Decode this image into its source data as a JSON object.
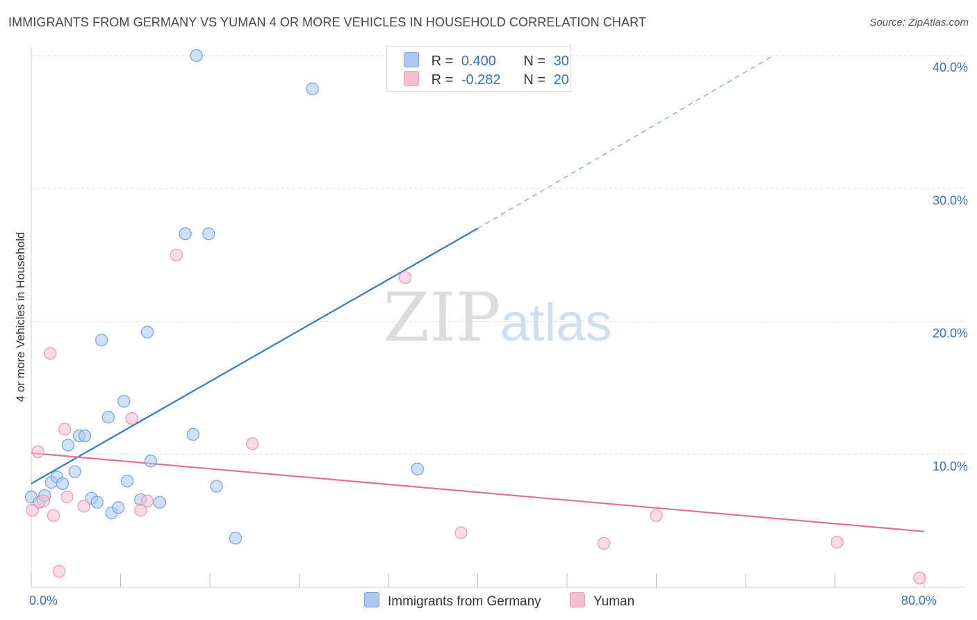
{
  "header": {
    "title": "IMMIGRANTS FROM GERMANY VS YUMAN 4 OR MORE VEHICLES IN HOUSEHOLD CORRELATION CHART",
    "source": "Source: ZipAtlas.com"
  },
  "watermark": {
    "zip": "ZIP",
    "atlas": "atlas"
  },
  "legend_top": {
    "rows": [
      {
        "r_label": "R =",
        "r_value": "0.400",
        "n_label": "N =",
        "n_value": "30"
      },
      {
        "r_label": "R =",
        "r_value": "-0.282",
        "n_label": "N =",
        "n_value": "20"
      }
    ]
  },
  "legend_bottom": {
    "items": [
      {
        "label": "Immigrants from Germany"
      },
      {
        "label": "Yuman"
      }
    ]
  },
  "colors": {
    "germany_fill": "#aac8f0",
    "germany_stroke": "#7aa6e0",
    "germany_line": "#2f78d0",
    "yuman_fill": "#f7bfd0",
    "yuman_stroke": "#ee9ab5",
    "yuman_line": "#e0709a",
    "tick_label": "#3a6fc4",
    "grid": "#dddddd"
  },
  "chart_data": {
    "type": "scatter",
    "title": "IMMIGRANTS FROM GERMANY VS YUMAN 4 OR MORE VEHICLES IN HOUSEHOLD CORRELATION CHART",
    "xlabel": "",
    "ylabel": "4 or more Vehicles in Household",
    "xlim": [
      0,
      80
    ],
    "ylim": [
      0,
      40
    ],
    "x_tick_labels": [
      {
        "value": 0,
        "label": "0.0%"
      },
      {
        "value": 80,
        "label": "80.0%"
      }
    ],
    "y_tick_labels": [
      {
        "value": 10,
        "label": "10.0%"
      },
      {
        "value": 20,
        "label": "20.0%"
      },
      {
        "value": 30,
        "label": "30.0%"
      },
      {
        "value": 40,
        "label": "40.0%"
      }
    ],
    "grid": true,
    "legend_position": "bottom",
    "series": [
      {
        "name": "Immigrants from Germany",
        "points": [
          {
            "x": 0.0,
            "y": 6.8
          },
          {
            "x": 0.7,
            "y": 6.4
          },
          {
            "x": 1.2,
            "y": 6.9
          },
          {
            "x": 1.8,
            "y": 7.9
          },
          {
            "x": 2.3,
            "y": 8.3
          },
          {
            "x": 2.8,
            "y": 7.8
          },
          {
            "x": 3.3,
            "y": 10.7
          },
          {
            "x": 3.9,
            "y": 8.7
          },
          {
            "x": 4.3,
            "y": 11.4
          },
          {
            "x": 4.8,
            "y": 11.4
          },
          {
            "x": 5.4,
            "y": 6.7
          },
          {
            "x": 5.9,
            "y": 6.4
          },
          {
            "x": 6.3,
            "y": 18.6
          },
          {
            "x": 6.9,
            "y": 12.8
          },
          {
            "x": 7.2,
            "y": 5.6
          },
          {
            "x": 7.8,
            "y": 6.0
          },
          {
            "x": 8.3,
            "y": 14.0
          },
          {
            "x": 8.6,
            "y": 8.0
          },
          {
            "x": 9.8,
            "y": 6.6
          },
          {
            "x": 10.4,
            "y": 19.2
          },
          {
            "x": 10.7,
            "y": 9.5
          },
          {
            "x": 11.5,
            "y": 6.4
          },
          {
            "x": 13.8,
            "y": 26.6
          },
          {
            "x": 14.5,
            "y": 11.5
          },
          {
            "x": 14.8,
            "y": 40.0
          },
          {
            "x": 15.9,
            "y": 26.6
          },
          {
            "x": 16.6,
            "y": 7.6
          },
          {
            "x": 18.3,
            "y": 3.7
          },
          {
            "x": 25.2,
            "y": 37.5
          },
          {
            "x": 34.6,
            "y": 8.9
          }
        ]
      },
      {
        "name": "Yuman",
        "points": [
          {
            "x": 0.1,
            "y": 5.8
          },
          {
            "x": 0.6,
            "y": 10.2
          },
          {
            "x": 1.1,
            "y": 6.5
          },
          {
            "x": 1.7,
            "y": 17.6
          },
          {
            "x": 2.0,
            "y": 5.4
          },
          {
            "x": 2.5,
            "y": 1.2
          },
          {
            "x": 3.0,
            "y": 11.9
          },
          {
            "x": 3.2,
            "y": 6.8
          },
          {
            "x": 4.7,
            "y": 6.1
          },
          {
            "x": 9.0,
            "y": 12.7
          },
          {
            "x": 9.8,
            "y": 5.8
          },
          {
            "x": 10.4,
            "y": 6.5
          },
          {
            "x": 13.0,
            "y": 25.0
          },
          {
            "x": 19.8,
            "y": 10.8
          },
          {
            "x": 33.5,
            "y": 23.3
          },
          {
            "x": 38.5,
            "y": 4.1
          },
          {
            "x": 51.3,
            "y": 3.3
          },
          {
            "x": 56.0,
            "y": 5.4
          },
          {
            "x": 72.2,
            "y": 3.4
          },
          {
            "x": 79.6,
            "y": 0.7
          }
        ]
      }
    ],
    "trend_lines": [
      {
        "series": "Immigrants from Germany",
        "x_start": 0,
        "y_start": 7.8,
        "x_solid_end": 40,
        "y_solid_end": 27.0,
        "x_dashed_end": 66.5,
        "y_dashed_end": 40.0
      },
      {
        "series": "Yuman",
        "x_start": 0,
        "y_start": 10.1,
        "x_end": 80,
        "y_end": 4.2
      }
    ]
  }
}
